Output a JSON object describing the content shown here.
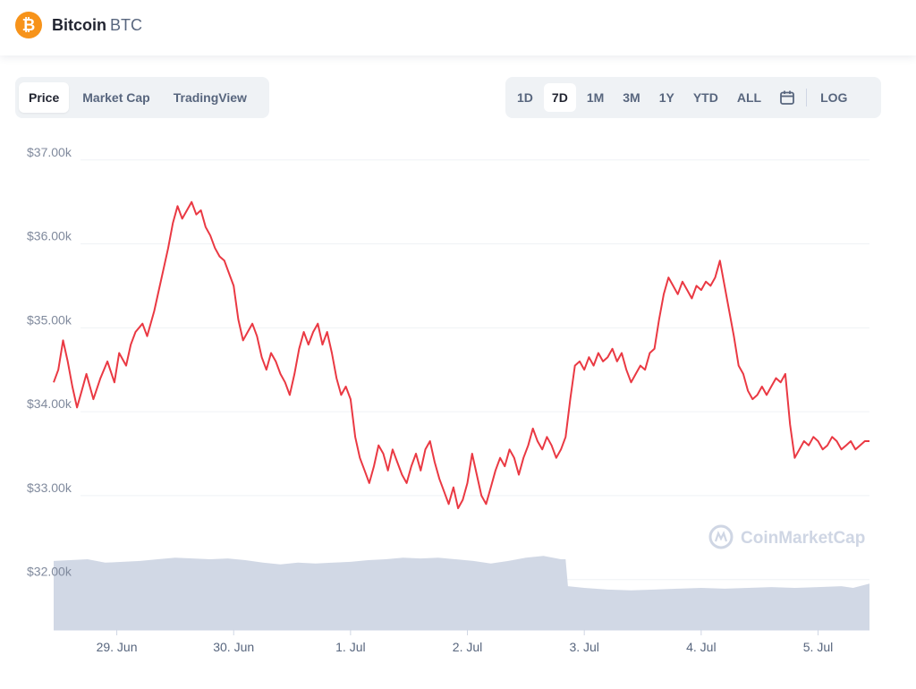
{
  "header": {
    "coin_name": "Bitcoin",
    "coin_symbol": "BTC",
    "logo_glyph": "₿",
    "logo_color": "#f7931a"
  },
  "chart_tabs": [
    {
      "label": "Price",
      "active": true
    },
    {
      "label": "Market Cap",
      "active": false
    },
    {
      "label": "TradingView",
      "active": false
    }
  ],
  "ranges": [
    {
      "label": "1D",
      "active": false
    },
    {
      "label": "7D",
      "active": true
    },
    {
      "label": "1M",
      "active": false
    },
    {
      "label": "3M",
      "active": false
    },
    {
      "label": "1Y",
      "active": false
    },
    {
      "label": "YTD",
      "active": false
    },
    {
      "label": "ALL",
      "active": false
    }
  ],
  "calendar_icon": "calendar-icon",
  "log_label": "LOG",
  "watermark": "CoinMarketCap",
  "colors": {
    "price_line": "#ea3943",
    "volume": "#cfd6e4",
    "grid": "#eff2f5"
  },
  "chart_data": {
    "type": "line",
    "title": "",
    "xlabel": "",
    "ylabel": "",
    "y_ticks": [
      "$32.00k",
      "$33.00k",
      "$34.00k",
      "$35.00k",
      "$36.00k",
      "$37.00k"
    ],
    "ylim": [
      31400,
      37200
    ],
    "x_ticks": [
      {
        "label": "29. Jun",
        "t": 1.0
      },
      {
        "label": "30. Jun",
        "t": 2.0
      },
      {
        "label": "1. Jul",
        "t": 3.0
      },
      {
        "label": "2. Jul",
        "t": 4.0
      },
      {
        "label": "3. Jul",
        "t": 5.0
      },
      {
        "label": "4. Jul",
        "t": 6.0
      },
      {
        "label": "5. Jul",
        "t": 7.0
      }
    ],
    "xlim": [
      0.46,
      7.44
    ],
    "grid": true,
    "series": [
      {
        "name": "",
        "color": "#ea3943",
        "points": [
          [
            0.46,
            34350
          ],
          [
            0.5,
            34500
          ],
          [
            0.54,
            34850
          ],
          [
            0.58,
            34600
          ],
          [
            0.62,
            34300
          ],
          [
            0.66,
            34050
          ],
          [
            0.7,
            34250
          ],
          [
            0.74,
            34450
          ],
          [
            0.8,
            34150
          ],
          [
            0.86,
            34400
          ],
          [
            0.92,
            34600
          ],
          [
            0.98,
            34350
          ],
          [
            1.02,
            34700
          ],
          [
            1.08,
            34550
          ],
          [
            1.12,
            34800
          ],
          [
            1.16,
            34950
          ],
          [
            1.22,
            35050
          ],
          [
            1.26,
            34900
          ],
          [
            1.32,
            35200
          ],
          [
            1.36,
            35450
          ],
          [
            1.4,
            35700
          ],
          [
            1.44,
            35950
          ],
          [
            1.48,
            36250
          ],
          [
            1.52,
            36450
          ],
          [
            1.56,
            36300
          ],
          [
            1.6,
            36400
          ],
          [
            1.64,
            36500
          ],
          [
            1.68,
            36350
          ],
          [
            1.72,
            36400
          ],
          [
            1.76,
            36200
          ],
          [
            1.8,
            36100
          ],
          [
            1.84,
            35950
          ],
          [
            1.88,
            35850
          ],
          [
            1.92,
            35800
          ],
          [
            1.96,
            35650
          ],
          [
            2.0,
            35500
          ],
          [
            2.04,
            35100
          ],
          [
            2.08,
            34850
          ],
          [
            2.12,
            34950
          ],
          [
            2.16,
            35050
          ],
          [
            2.2,
            34900
          ],
          [
            2.24,
            34650
          ],
          [
            2.28,
            34500
          ],
          [
            2.32,
            34700
          ],
          [
            2.36,
            34600
          ],
          [
            2.4,
            34450
          ],
          [
            2.44,
            34350
          ],
          [
            2.48,
            34200
          ],
          [
            2.52,
            34450
          ],
          [
            2.56,
            34750
          ],
          [
            2.6,
            34950
          ],
          [
            2.64,
            34800
          ],
          [
            2.68,
            34950
          ],
          [
            2.72,
            35050
          ],
          [
            2.76,
            34800
          ],
          [
            2.8,
            34950
          ],
          [
            2.84,
            34700
          ],
          [
            2.88,
            34400
          ],
          [
            2.92,
            34200
          ],
          [
            2.96,
            34300
          ],
          [
            3.0,
            34150
          ],
          [
            3.04,
            33700
          ],
          [
            3.08,
            33450
          ],
          [
            3.12,
            33300
          ],
          [
            3.16,
            33150
          ],
          [
            3.2,
            33350
          ],
          [
            3.24,
            33600
          ],
          [
            3.28,
            33500
          ],
          [
            3.32,
            33300
          ],
          [
            3.36,
            33550
          ],
          [
            3.4,
            33400
          ],
          [
            3.44,
            33250
          ],
          [
            3.48,
            33150
          ],
          [
            3.52,
            33350
          ],
          [
            3.56,
            33500
          ],
          [
            3.6,
            33300
          ],
          [
            3.64,
            33550
          ],
          [
            3.68,
            33650
          ],
          [
            3.72,
            33400
          ],
          [
            3.76,
            33200
          ],
          [
            3.8,
            33050
          ],
          [
            3.84,
            32900
          ],
          [
            3.88,
            33100
          ],
          [
            3.92,
            32850
          ],
          [
            3.96,
            32950
          ],
          [
            4.0,
            33150
          ],
          [
            4.04,
            33500
          ],
          [
            4.08,
            33250
          ],
          [
            4.12,
            33000
          ],
          [
            4.16,
            32900
          ],
          [
            4.2,
            33100
          ],
          [
            4.24,
            33300
          ],
          [
            4.28,
            33450
          ],
          [
            4.32,
            33350
          ],
          [
            4.36,
            33550
          ],
          [
            4.4,
            33450
          ],
          [
            4.44,
            33250
          ],
          [
            4.48,
            33450
          ],
          [
            4.52,
            33600
          ],
          [
            4.56,
            33800
          ],
          [
            4.6,
            33650
          ],
          [
            4.64,
            33550
          ],
          [
            4.68,
            33700
          ],
          [
            4.72,
            33600
          ],
          [
            4.76,
            33450
          ],
          [
            4.8,
            33550
          ],
          [
            4.84,
            33700
          ],
          [
            4.88,
            34150
          ],
          [
            4.92,
            34550
          ],
          [
            4.96,
            34600
          ],
          [
            5.0,
            34500
          ],
          [
            5.04,
            34650
          ],
          [
            5.08,
            34550
          ],
          [
            5.12,
            34700
          ],
          [
            5.16,
            34600
          ],
          [
            5.2,
            34650
          ],
          [
            5.24,
            34750
          ],
          [
            5.28,
            34600
          ],
          [
            5.32,
            34700
          ],
          [
            5.36,
            34500
          ],
          [
            5.4,
            34350
          ],
          [
            5.44,
            34450
          ],
          [
            5.48,
            34550
          ],
          [
            5.52,
            34500
          ],
          [
            5.56,
            34700
          ],
          [
            5.6,
            34750
          ],
          [
            5.64,
            35100
          ],
          [
            5.68,
            35400
          ],
          [
            5.72,
            35600
          ],
          [
            5.76,
            35500
          ],
          [
            5.8,
            35400
          ],
          [
            5.84,
            35550
          ],
          [
            5.88,
            35450
          ],
          [
            5.92,
            35350
          ],
          [
            5.96,
            35500
          ],
          [
            6.0,
            35450
          ],
          [
            6.04,
            35550
          ],
          [
            6.08,
            35500
          ],
          [
            6.12,
            35600
          ],
          [
            6.16,
            35800
          ],
          [
            6.2,
            35500
          ],
          [
            6.24,
            35200
          ],
          [
            6.28,
            34900
          ],
          [
            6.32,
            34550
          ],
          [
            6.36,
            34450
          ],
          [
            6.4,
            34250
          ],
          [
            6.44,
            34150
          ],
          [
            6.48,
            34200
          ],
          [
            6.52,
            34300
          ],
          [
            6.56,
            34200
          ],
          [
            6.6,
            34300
          ],
          [
            6.64,
            34400
          ],
          [
            6.68,
            34350
          ],
          [
            6.72,
            34450
          ],
          [
            6.76,
            33850
          ],
          [
            6.8,
            33450
          ],
          [
            6.84,
            33550
          ],
          [
            6.88,
            33650
          ],
          [
            6.92,
            33600
          ],
          [
            6.96,
            33700
          ],
          [
            7.0,
            33650
          ],
          [
            7.04,
            33550
          ],
          [
            7.08,
            33600
          ],
          [
            7.12,
            33700
          ],
          [
            7.16,
            33650
          ],
          [
            7.2,
            33550
          ],
          [
            7.24,
            33600
          ],
          [
            7.28,
            33650
          ],
          [
            7.32,
            33550
          ],
          [
            7.36,
            33600
          ],
          [
            7.4,
            33650
          ],
          [
            7.44,
            33650
          ]
        ]
      }
    ],
    "volume": {
      "color": "#cfd6e4",
      "points": [
        [
          0.46,
          0.82
        ],
        [
          0.6,
          0.83
        ],
        [
          0.75,
          0.84
        ],
        [
          0.9,
          0.8
        ],
        [
          1.05,
          0.81
        ],
        [
          1.2,
          0.82
        ],
        [
          1.35,
          0.84
        ],
        [
          1.5,
          0.86
        ],
        [
          1.65,
          0.85
        ],
        [
          1.8,
          0.84
        ],
        [
          1.95,
          0.85
        ],
        [
          2.1,
          0.83
        ],
        [
          2.25,
          0.8
        ],
        [
          2.4,
          0.78
        ],
        [
          2.55,
          0.8
        ],
        [
          2.7,
          0.79
        ],
        [
          2.85,
          0.8
        ],
        [
          3.0,
          0.81
        ],
        [
          3.15,
          0.83
        ],
        [
          3.3,
          0.84
        ],
        [
          3.45,
          0.86
        ],
        [
          3.6,
          0.85
        ],
        [
          3.75,
          0.86
        ],
        [
          3.9,
          0.84
        ],
        [
          4.05,
          0.82
        ],
        [
          4.2,
          0.79
        ],
        [
          4.35,
          0.82
        ],
        [
          4.5,
          0.86
        ],
        [
          4.65,
          0.88
        ],
        [
          4.8,
          0.84
        ],
        [
          4.84,
          0.84
        ],
        [
          4.86,
          0.52
        ],
        [
          5.0,
          0.5
        ],
        [
          5.2,
          0.48
        ],
        [
          5.4,
          0.47
        ],
        [
          5.6,
          0.48
        ],
        [
          5.8,
          0.49
        ],
        [
          6.0,
          0.5
        ],
        [
          6.2,
          0.49
        ],
        [
          6.4,
          0.5
        ],
        [
          6.6,
          0.51
        ],
        [
          6.8,
          0.5
        ],
        [
          7.0,
          0.51
        ],
        [
          7.2,
          0.52
        ],
        [
          7.3,
          0.5
        ],
        [
          7.44,
          0.55
        ]
      ]
    }
  }
}
